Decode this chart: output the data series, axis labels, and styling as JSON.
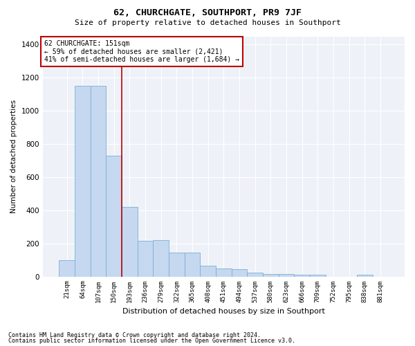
{
  "title": "62, CHURCHGATE, SOUTHPORT, PR9 7JF",
  "subtitle": "Size of property relative to detached houses in Southport",
  "xlabel": "Distribution of detached houses by size in Southport",
  "ylabel": "Number of detached properties",
  "bar_labels": [
    "21sqm",
    "64sqm",
    "107sqm",
    "150sqm",
    "193sqm",
    "236sqm",
    "279sqm",
    "322sqm",
    "365sqm",
    "408sqm",
    "451sqm",
    "494sqm",
    "537sqm",
    "580sqm",
    "623sqm",
    "666sqm",
    "709sqm",
    "752sqm",
    "795sqm",
    "838sqm",
    "881sqm"
  ],
  "bar_values": [
    100,
    1150,
    1150,
    730,
    420,
    215,
    220,
    145,
    145,
    65,
    50,
    45,
    25,
    15,
    15,
    12,
    12,
    0,
    0,
    12,
    0
  ],
  "bar_color": "#c5d8f0",
  "bar_edge_color": "#7aafd4",
  "property_line_x": 3.5,
  "annotation_line1": "62 CHURCHGATE: 151sqm",
  "annotation_line2": "← 59% of detached houses are smaller (2,421)",
  "annotation_line3": "41% of semi-detached houses are larger (1,684) →",
  "annotation_box_color": "#bb0000",
  "ylim": [
    0,
    1450
  ],
  "yticks": [
    0,
    200,
    400,
    600,
    800,
    1000,
    1200,
    1400
  ],
  "footer1": "Contains HM Land Registry data © Crown copyright and database right 2024.",
  "footer2": "Contains public sector information licensed under the Open Government Licence v3.0.",
  "bg_color": "#eef2f8",
  "fig_bg_color": "#ffffff"
}
